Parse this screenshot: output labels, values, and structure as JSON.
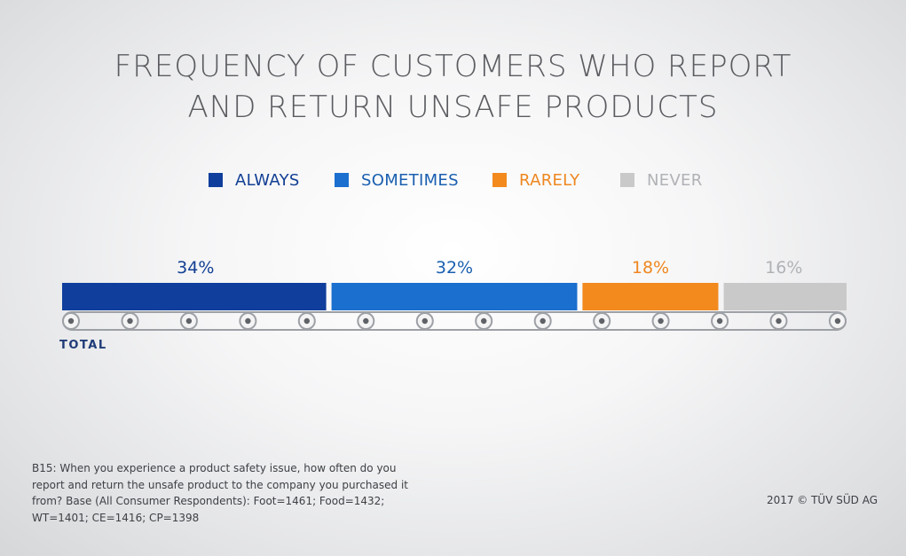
{
  "title_lines": [
    "FREQUENCY OF CUSTOMERS WHO REPORT",
    "AND RETURN UNSAFE PRODUCTS"
  ],
  "chart_data": {
    "type": "bar",
    "orientation": "horizontal-stacked",
    "title": "FREQUENCY OF CUSTOMERS WHO REPORT AND RETURN UNSAFE PRODUCTS",
    "categories": [
      "TOTAL"
    ],
    "series": [
      {
        "name": "ALWAYS",
        "values": [
          34
        ],
        "label": "34%",
        "color": "#0f3e9c",
        "label_color": "#123f93"
      },
      {
        "name": "SOMETIMES",
        "values": [
          32
        ],
        "label": "32%",
        "color": "#1a6fcf",
        "label_color": "#1a5fb0"
      },
      {
        "name": "RARELY",
        "values": [
          18
        ],
        "label": "18%",
        "color": "#f28a1e",
        "label_color": "#ee8720"
      },
      {
        "name": "NEVER",
        "values": [
          16
        ],
        "label": "16%",
        "color": "#c9c9ca",
        "label_color": "#b0b2b6"
      }
    ],
    "legend_position": "top-center",
    "unit": "%",
    "xlim": [
      0,
      100
    ]
  },
  "footnote": "B15: When you experience a product safety issue, how often do you report and return the unsafe product to the company you purchased it from? Base (All Consumer Respondents): Foot=1461; Food=1432; WT=1401; CE=1416; CP=1398",
  "copyright": "2017 © TÜV SÜD AG",
  "colors": {
    "title": "#5a5c60",
    "conveyor": "#9da0a5",
    "category_label": "#1f3c78"
  }
}
